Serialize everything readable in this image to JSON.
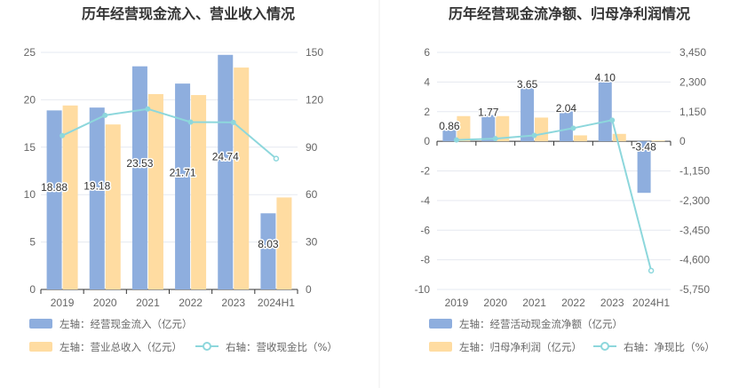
{
  "colors": {
    "bar_primary": "#8eaede",
    "bar_secondary": "#ffdca1",
    "line": "#8dd7dc"
  },
  "chart_data": [
    {
      "type": "bar+line",
      "title": "历年经营现金流入、营业收入情况",
      "categories": [
        "2019",
        "2020",
        "2021",
        "2022",
        "2023",
        "2024H1"
      ],
      "left_axis": {
        "min": 0,
        "max": 25,
        "ticks": [
          "0",
          "5",
          "10",
          "15",
          "20",
          "25"
        ]
      },
      "right_axis": {
        "min": 0,
        "max": 150,
        "ticks": [
          "0",
          "30",
          "60",
          "90",
          "120",
          "150"
        ]
      },
      "series": [
        {
          "name": "左轴：经营现金流入（亿元）",
          "axis": "left",
          "kind": "bar",
          "values": [
            18.88,
            19.18,
            23.53,
            21.71,
            24.74,
            8.03
          ],
          "labels": [
            "18.88",
            "19.18",
            "23.53",
            "21.71",
            "24.74",
            "8.03"
          ]
        },
        {
          "name": "左轴：营业总收入（亿元）",
          "axis": "left",
          "kind": "bar",
          "values": [
            19.4,
            17.4,
            20.6,
            20.5,
            23.4,
            9.7
          ]
        },
        {
          "name": "右轴：营收现金比（%）",
          "axis": "right",
          "kind": "line",
          "values": [
            97.3,
            110.2,
            114.2,
            105.9,
            105.7,
            82.8
          ]
        }
      ]
    },
    {
      "type": "bar+line",
      "title": "历年经营现金流净额、归母净利润情况",
      "categories": [
        "2019",
        "2020",
        "2021",
        "2022",
        "2023",
        "2024H1"
      ],
      "left_axis": {
        "min": -10,
        "max": 6,
        "ticks": [
          "-10",
          "-8",
          "-6",
          "-4",
          "-2",
          "0",
          "2",
          "4",
          "6"
        ]
      },
      "right_axis": {
        "min": -5750,
        "max": 3450,
        "ticks": [
          "-5,750",
          "-4,600",
          "-3,450",
          "-2,300",
          "-1,150",
          "0",
          "1,150",
          "2,300",
          "3,450"
        ]
      },
      "series": [
        {
          "name": "左轴：经营活动现金流净额（亿元）",
          "axis": "left",
          "kind": "bar",
          "values": [
            0.86,
            1.77,
            3.65,
            2.04,
            4.1,
            -3.48
          ],
          "labels": [
            "0.86",
            "1.77",
            "3.65",
            "2.04",
            "4.10",
            "-3.48"
          ]
        },
        {
          "name": "左轴：归母净利润（亿元）",
          "axis": "left",
          "kind": "bar",
          "values": [
            1.7,
            1.7,
            1.6,
            0.4,
            0.5,
            0.05
          ]
        },
        {
          "name": "右轴：净现比（%）",
          "axis": "right",
          "kind": "line",
          "values": [
            50,
            104,
            228,
            510,
            820,
            -5020
          ]
        }
      ]
    }
  ]
}
